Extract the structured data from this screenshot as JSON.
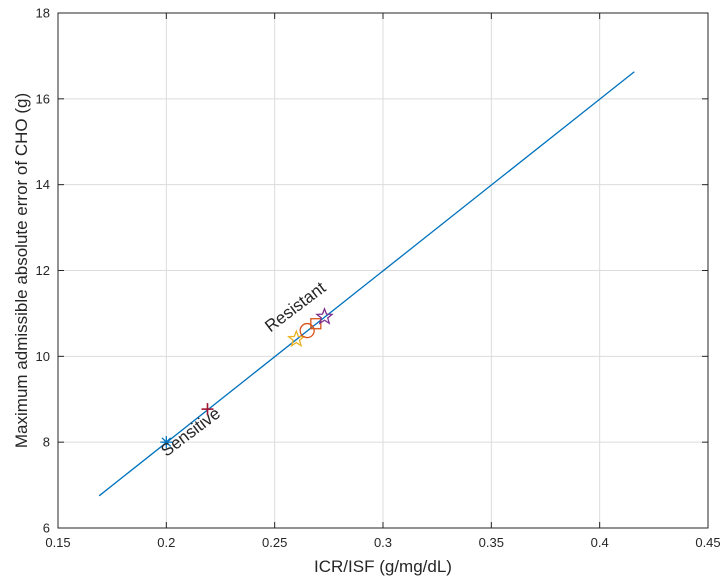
{
  "chart_data": {
    "type": "line",
    "xlabel": "ICR/ISF (g/mg/dL)",
    "ylabel": "Maximum admissible absolute error of CHO (g)",
    "xlim": [
      0.15,
      0.45
    ],
    "ylim": [
      6,
      18
    ],
    "xticks": [
      0.15,
      0.2,
      0.25,
      0.3,
      0.35,
      0.4,
      0.45
    ],
    "yticks": [
      6,
      8,
      10,
      12,
      14,
      16,
      18
    ],
    "xtick_labels": [
      "0.15",
      "0.2",
      "0.25",
      "0.3",
      "0.35",
      "0.4",
      "0.45"
    ],
    "ytick_labels": [
      "6",
      "8",
      "10",
      "12",
      "14",
      "16",
      "18"
    ],
    "grid": true,
    "line": {
      "x": [
        0.169,
        0.416
      ],
      "y": [
        6.75,
        16.63
      ],
      "color": "#0072BD"
    },
    "markers": [
      {
        "marker": "asterisk",
        "x": 0.2,
        "y": 8.0,
        "color": "#0072BD"
      },
      {
        "marker": "plus",
        "x": 0.219,
        "y": 8.77,
        "color": "#A2142F"
      },
      {
        "marker": "star",
        "x": 0.26,
        "y": 10.4,
        "color": "#EDB120"
      },
      {
        "marker": "circle",
        "x": 0.265,
        "y": 10.6,
        "color": "#D95319"
      },
      {
        "marker": "square",
        "x": 0.269,
        "y": 10.76,
        "color": "#D95319"
      },
      {
        "marker": "star",
        "x": 0.273,
        "y": 10.92,
        "color": "#7E2F8E"
      }
    ],
    "annotations": [
      {
        "text": "Resistant",
        "x": 0.248,
        "y": 10.55,
        "angle": -37
      },
      {
        "text": "Sensitive",
        "x": 0.2,
        "y": 7.65,
        "angle": -37
      }
    ]
  }
}
